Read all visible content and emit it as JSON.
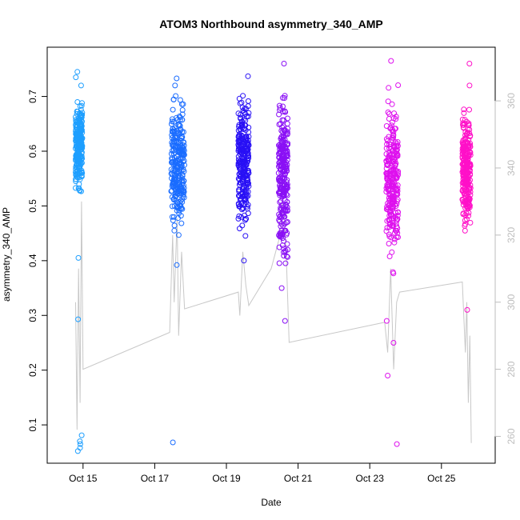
{
  "chart_data": {
    "type": "scatter",
    "title": "ATOM3 Northbound asymmetry_340_AMP",
    "xlabel": "Date",
    "ylabel": "asymmetry_340_AMP",
    "xlim": [
      "2015-10-14T00:00",
      "2015-10-26T12:00"
    ],
    "x_ticks": [
      "Oct 15",
      "Oct 17",
      "Oct 19",
      "Oct 21",
      "Oct 23",
      "Oct 25"
    ],
    "ylim": [
      0.03,
      0.79
    ],
    "y_ticks": [
      "0.1",
      "0.2",
      "0.3",
      "0.4",
      "0.5",
      "0.6",
      "0.7"
    ],
    "y2lim": [
      252,
      376
    ],
    "y2_ticks": [
      "260",
      "280",
      "300",
      "320",
      "340",
      "360"
    ],
    "y2_color": "#bdbdbd",
    "line_color": "#c8c8c8",
    "clusters": [
      {
        "color": "#1e9fff",
        "start": "2015-10-14T19:00",
        "end": "2015-10-14T23:30",
        "dense_min": 0.52,
        "dense_max": 0.7,
        "outliers": [
          0.745,
          0.735,
          0.72,
          0.405,
          0.293,
          0.081,
          0.07,
          0.065,
          0.058,
          0.052
        ]
      },
      {
        "color": "#1a6cff",
        "start": "2015-10-17T11:00",
        "end": "2015-10-17T20:00",
        "dense_min": 0.43,
        "dense_max": 0.71,
        "outliers": [
          0.733,
          0.72,
          0.392,
          0.068
        ]
      },
      {
        "color": "#2810f5",
        "start": "2015-10-19T08:00",
        "end": "2015-10-19T15:00",
        "dense_min": 0.43,
        "dense_max": 0.73,
        "outliers": [
          0.737,
          0.4
        ]
      },
      {
        "color": "#8a10f5",
        "start": "2015-10-20T11:00",
        "end": "2015-10-20T17:00",
        "dense_min": 0.36,
        "dense_max": 0.75,
        "outliers": [
          0.76,
          0.29,
          0.35
        ]
      },
      {
        "color": "#de10ee",
        "start": "2015-10-23T11:00",
        "end": "2015-10-23T19:00",
        "dense_min": 0.36,
        "dense_max": 0.73,
        "outliers": [
          0.765,
          0.29,
          0.25,
          0.19,
          0.065
        ]
      },
      {
        "color": "#ff10c8",
        "start": "2015-10-25T14:00",
        "end": "2015-10-25T19:30",
        "dense_min": 0.43,
        "dense_max": 0.7,
        "outliers": [
          0.76,
          0.72,
          0.31
        ]
      }
    ],
    "secondary_line": [
      [
        "2015-10-14T19:00",
        300
      ],
      [
        "2015-10-14T20:00",
        262
      ],
      [
        "2015-10-14T21:00",
        310
      ],
      [
        "2015-10-14T22:00",
        270
      ],
      [
        "2015-10-14T23:00",
        330
      ],
      [
        "2015-10-15T00:00",
        280
      ],
      [
        "2015-10-17T10:00",
        291
      ],
      [
        "2015-10-17T12:00",
        320
      ],
      [
        "2015-10-17T13:00",
        300
      ],
      [
        "2015-10-17T15:00",
        325
      ],
      [
        "2015-10-17T16:00",
        290
      ],
      [
        "2015-10-17T18:00",
        315
      ],
      [
        "2015-10-17T20:00",
        298
      ],
      [
        "2015-10-19T08:00",
        303
      ],
      [
        "2015-10-19T09:00",
        296
      ],
      [
        "2015-10-19T11:00",
        315
      ],
      [
        "2015-10-19T13:00",
        305
      ],
      [
        "2015-10-19T15:00",
        299
      ],
      [
        "2015-10-20T06:00",
        310
      ],
      [
        "2015-10-20T12:00",
        320
      ],
      [
        "2015-10-20T14:00",
        330
      ],
      [
        "2015-10-20T16:00",
        315
      ],
      [
        "2015-10-20T18:00",
        288
      ],
      [
        "2015-10-23T10:00",
        294
      ],
      [
        "2015-10-23T12:00",
        285
      ],
      [
        "2015-10-23T14:00",
        310
      ],
      [
        "2015-10-23T16:00",
        280
      ],
      [
        "2015-10-23T18:00",
        300
      ],
      [
        "2015-10-23T20:00",
        303
      ],
      [
        "2015-10-25T14:00",
        306
      ],
      [
        "2015-10-25T16:00",
        285
      ],
      [
        "2015-10-25T17:00",
        300
      ],
      [
        "2015-10-25T18:00",
        270
      ],
      [
        "2015-10-25T19:00",
        290
      ],
      [
        "2015-10-25T20:00",
        258
      ]
    ],
    "grid": false,
    "legend": "none"
  }
}
